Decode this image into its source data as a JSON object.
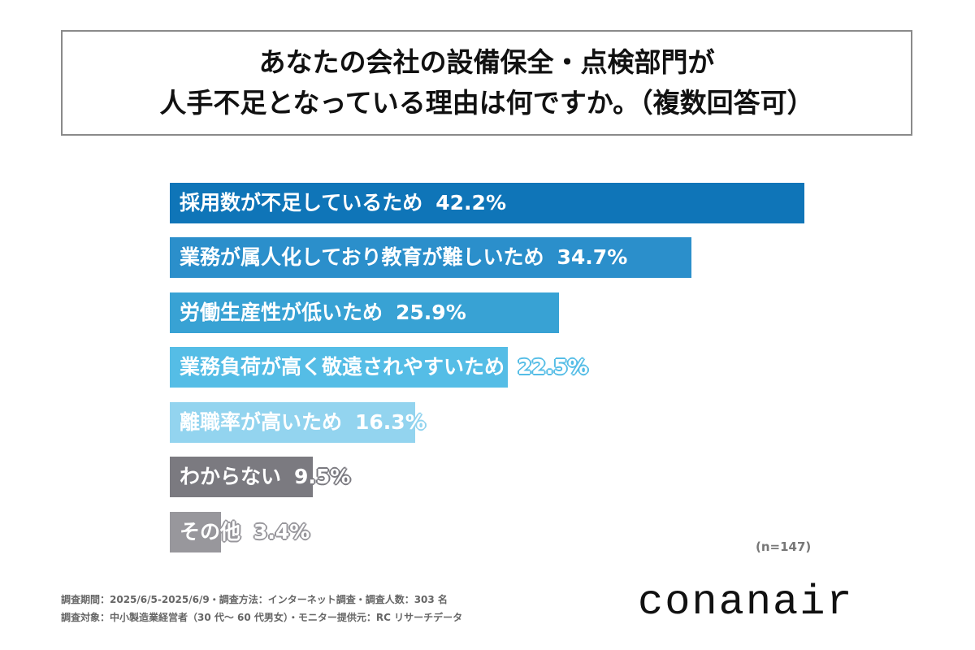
{
  "title": {
    "line1": "あなたの会社の設備保全・点検部門が",
    "line2": "人手不足となっている理由は何ですか。（複数回答可）"
  },
  "chart_data": {
    "type": "bar",
    "orientation": "horizontal",
    "title": "あなたの会社の設備保全・点検部門が人手不足となっている理由は何ですか。（複数回答可）",
    "categories": [
      "採用数が不足しているため",
      "業務が属人化しており教育が難しいため",
      "労働生産性が低いため",
      "業務負荷が高く敬遠されやすいため",
      "離職率が高いため",
      "わからない",
      "その他"
    ],
    "values": [
      42.2,
      34.7,
      25.9,
      22.5,
      16.3,
      9.5,
      3.4
    ],
    "value_labels": [
      "42.2%",
      "34.7%",
      "25.9%",
      "22.5%",
      "16.3%",
      "9.5%",
      "3.4%"
    ],
    "unit": "%",
    "xlabel": "",
    "ylabel": "",
    "xlim": [
      0,
      50
    ],
    "grid": false,
    "legend": null,
    "annotation": "(n=147)",
    "colors": [
      "#0f75b8",
      "#2b8fcb",
      "#38a2d4",
      "#55bde6",
      "#93d4ef",
      "#7b7a80",
      "#98979c"
    ]
  },
  "bars": [
    {
      "label": "採用数が不足しているため",
      "pct": "42.2%",
      "value": 42.2,
      "color": "#0f75b8",
      "outline": "#0f75b8"
    },
    {
      "label": "業務が属人化しており教育が難しいため",
      "pct": "34.7%",
      "value": 34.7,
      "color": "#2b8fcb",
      "outline": "#2b8fcb"
    },
    {
      "label": "労働生産性が低いため",
      "pct": "25.9%",
      "value": 25.9,
      "color": "#38a2d4",
      "outline": "#38a2d4"
    },
    {
      "label": "業務負荷が高く敬遠されやすいため",
      "pct": "22.5%",
      "value": 22.5,
      "color": "#55bde6",
      "outline": "#55bde6"
    },
    {
      "label": "離職率が高いため",
      "pct": "16.3%",
      "value": 16.3,
      "color": "#93d4ef",
      "outline": "#93d4ef"
    },
    {
      "label": "わからない",
      "pct": "9.5%",
      "value": 9.5,
      "color": "#7b7a80",
      "outline": "#7b7a80"
    },
    {
      "label": "その他",
      "pct": "3.4%",
      "value": 3.4,
      "color": "#98979c",
      "outline": "#98979c"
    }
  ],
  "sample_size": "(n=147)",
  "footer": {
    "line1": "調査期間：2025/6/5-2025/6/9・調査方法：インターネット調査・調査人数：303 名",
    "line2": "調査対象：中小製造業経営者（30 代～ 60 代男女）・モニター提供元：RC リサーチデータ"
  },
  "logo": "conanair"
}
